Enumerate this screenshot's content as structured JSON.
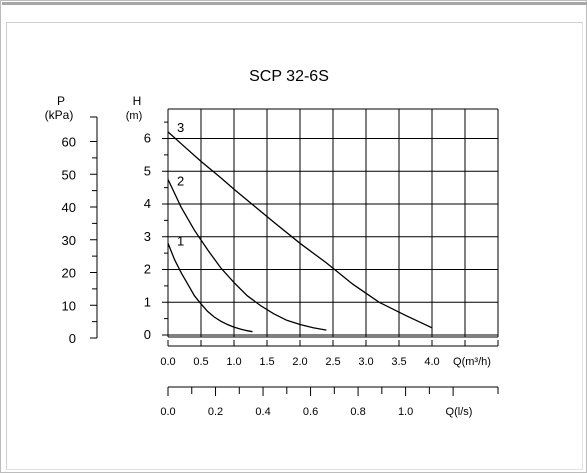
{
  "chart_data": {
    "type": "line",
    "title": "SCP 32-6S",
    "x": {
      "label": "Q(m³/h)",
      "ticks": [
        "0.0",
        "0.5",
        "1.0",
        "1.5",
        "2.0",
        "2.5",
        "3.0",
        "3.5",
        "4.0"
      ],
      "range": [
        0,
        4.5
      ]
    },
    "x2": {
      "label": "Q(l/s)",
      "ticks": [
        "0.0",
        "0.2",
        "0.4",
        "0.6",
        "0.8",
        "1.0"
      ],
      "tick_values": [
        0,
        0.2,
        0.4,
        0.6,
        0.8,
        1.0
      ]
    },
    "y": {
      "label": "H",
      "unit": "(m)",
      "ticks": [
        "0",
        "1",
        "2",
        "3",
        "4",
        "5",
        "6"
      ],
      "range": [
        0,
        6
      ]
    },
    "y2": {
      "label": "P",
      "unit": "(kPa)",
      "ticks": [
        "0",
        "10",
        "20",
        "30",
        "40",
        "50",
        "60"
      ],
      "tick_values": [
        0,
        10,
        20,
        30,
        40,
        50,
        60
      ]
    },
    "grid": true,
    "series": [
      {
        "name": "1",
        "points": [
          [
            0.0,
            2.8
          ],
          [
            0.1,
            2.3
          ],
          [
            0.2,
            1.9
          ],
          [
            0.3,
            1.55
          ],
          [
            0.4,
            1.2
          ],
          [
            0.5,
            0.95
          ],
          [
            0.6,
            0.72
          ],
          [
            0.7,
            0.55
          ],
          [
            0.8,
            0.42
          ],
          [
            0.9,
            0.32
          ],
          [
            1.0,
            0.24
          ],
          [
            1.1,
            0.18
          ],
          [
            1.2,
            0.13
          ],
          [
            1.28,
            0.1
          ]
        ]
      },
      {
        "name": "2",
        "points": [
          [
            0.0,
            4.75
          ],
          [
            0.2,
            3.9
          ],
          [
            0.4,
            3.2
          ],
          [
            0.6,
            2.6
          ],
          [
            0.8,
            2.05
          ],
          [
            1.0,
            1.6
          ],
          [
            1.2,
            1.2
          ],
          [
            1.4,
            0.9
          ],
          [
            1.6,
            0.65
          ],
          [
            1.8,
            0.45
          ],
          [
            2.0,
            0.32
          ],
          [
            2.2,
            0.22
          ],
          [
            2.4,
            0.15
          ]
        ]
      },
      {
        "name": "3",
        "points": [
          [
            0.0,
            6.2
          ],
          [
            0.25,
            5.75
          ],
          [
            0.5,
            5.3
          ],
          [
            0.8,
            4.8
          ],
          [
            1.0,
            4.45
          ],
          [
            1.3,
            3.95
          ],
          [
            1.6,
            3.45
          ],
          [
            2.0,
            2.8
          ],
          [
            2.4,
            2.2
          ],
          [
            2.8,
            1.55
          ],
          [
            3.2,
            1.0
          ],
          [
            3.6,
            0.6
          ],
          [
            4.0,
            0.22
          ]
        ]
      }
    ]
  }
}
